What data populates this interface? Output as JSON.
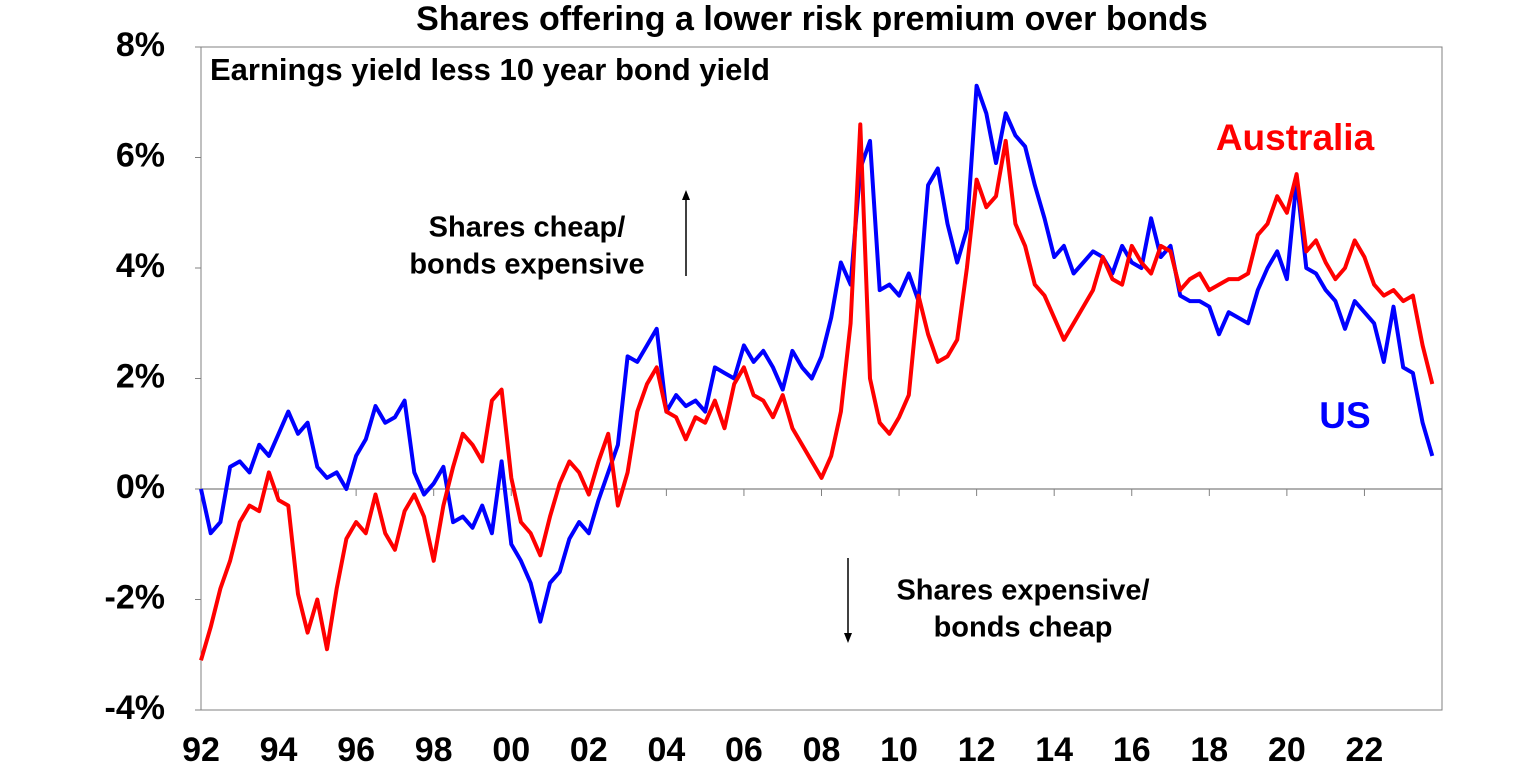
{
  "chart_data": {
    "type": "line",
    "title": "Shares offering a lower risk premium over bonds",
    "subtitle": "Earnings yield less 10 year bond yield",
    "annotations": [
      [
        "Shares cheap/",
        "bonds expensive"
      ],
      [
        "Shares expensive/",
        "bonds cheap"
      ]
    ],
    "x": [
      1992,
      1992.25,
      1992.5,
      1992.75,
      1993,
      1993.25,
      1993.5,
      1993.75,
      1994,
      1994.25,
      1994.5,
      1994.75,
      1995,
      1995.25,
      1995.5,
      1995.75,
      1996,
      1996.25,
      1996.5,
      1996.75,
      1997,
      1997.25,
      1997.5,
      1997.75,
      1998,
      1998.25,
      1998.5,
      1998.75,
      1999,
      1999.25,
      1999.5,
      1999.75,
      2000,
      2000.25,
      2000.5,
      2000.75,
      2001,
      2001.25,
      2001.5,
      2001.75,
      2002,
      2002.25,
      2002.5,
      2002.75,
      2003,
      2003.25,
      2003.5,
      2003.75,
      2004,
      2004.25,
      2004.5,
      2004.75,
      2005,
      2005.25,
      2005.5,
      2005.75,
      2006,
      2006.25,
      2006.5,
      2006.75,
      2007,
      2007.25,
      2007.5,
      2007.75,
      2008,
      2008.25,
      2008.5,
      2008.75,
      2009,
      2009.25,
      2009.5,
      2009.75,
      2010,
      2010.25,
      2010.5,
      2010.75,
      2011,
      2011.25,
      2011.5,
      2011.75,
      2012,
      2012.25,
      2012.5,
      2012.75,
      2013,
      2013.25,
      2013.5,
      2013.75,
      2014,
      2014.25,
      2014.5,
      2014.75,
      2015,
      2015.25,
      2015.5,
      2015.75,
      2016,
      2016.25,
      2016.5,
      2016.75,
      2017,
      2017.25,
      2017.5,
      2017.75,
      2018,
      2018.25,
      2018.5,
      2018.75,
      2019,
      2019.25,
      2019.5,
      2019.75,
      2020,
      2020.25,
      2020.5,
      2020.75,
      2021,
      2021.25,
      2021.5,
      2021.75,
      2022,
      2022.25,
      2022.5,
      2022.75,
      2023,
      2023.25,
      2023.5,
      2023.75
    ],
    "series": [
      {
        "name": "US",
        "color": "#0000ff",
        "values": [
          0,
          -0.8,
          -0.6,
          0.4,
          0.5,
          0.3,
          0.8,
          0.6,
          1.0,
          1.4,
          1.0,
          1.2,
          0.4,
          0.2,
          0.3,
          0.0,
          0.6,
          0.9,
          1.5,
          1.2,
          1.3,
          1.6,
          0.3,
          -0.1,
          0.1,
          0.4,
          -0.6,
          -0.5,
          -0.7,
          -0.3,
          -0.8,
          0.5,
          -1.0,
          -1.3,
          -1.7,
          -2.4,
          -1.7,
          -1.5,
          -0.9,
          -0.6,
          -0.8,
          -0.2,
          0.3,
          0.8,
          2.4,
          2.3,
          2.6,
          2.9,
          1.4,
          1.7,
          1.5,
          1.6,
          1.4,
          2.2,
          2.1,
          2.0,
          2.6,
          2.3,
          2.5,
          2.2,
          1.8,
          2.5,
          2.2,
          2.0,
          2.4,
          3.1,
          4.1,
          3.7,
          5.8,
          6.3,
          3.6,
          3.7,
          3.5,
          3.9,
          3.4,
          5.5,
          5.8,
          4.8,
          4.1,
          4.7,
          7.3,
          6.8,
          5.9,
          6.8,
          6.4,
          6.2,
          5.5,
          4.9,
          4.2,
          4.4,
          3.9,
          4.1,
          4.3,
          4.2,
          3.9,
          4.4,
          4.1,
          4.0,
          4.9,
          4.2,
          4.4,
          3.5,
          3.4,
          3.4,
          3.3,
          2.8,
          3.2,
          3.1,
          3.0,
          3.6,
          4.0,
          4.3,
          3.8,
          5.6,
          4.0,
          3.9,
          3.6,
          3.4,
          2.9,
          3.4,
          3.2,
          3.0,
          2.3,
          3.3,
          2.2,
          2.1,
          1.2,
          0.6
        ]
      },
      {
        "name": "Australia",
        "color": "#ff0000",
        "values": [
          -3.1,
          -2.5,
          -1.8,
          -1.3,
          -0.6,
          -0.3,
          -0.4,
          0.3,
          -0.2,
          -0.3,
          -1.9,
          -2.6,
          -2.0,
          -2.9,
          -1.8,
          -0.9,
          -0.6,
          -0.8,
          -0.1,
          -0.8,
          -1.1,
          -0.4,
          -0.1,
          -0.5,
          -1.3,
          -0.3,
          0.4,
          1.0,
          0.8,
          0.5,
          1.6,
          1.8,
          0.2,
          -0.6,
          -0.8,
          -1.2,
          -0.5,
          0.1,
          0.5,
          0.3,
          -0.1,
          0.5,
          1.0,
          -0.3,
          0.3,
          1.4,
          1.9,
          2.2,
          1.4,
          1.3,
          0.9,
          1.3,
          1.2,
          1.6,
          1.1,
          1.9,
          2.2,
          1.7,
          1.6,
          1.3,
          1.7,
          1.1,
          0.8,
          0.5,
          0.2,
          0.6,
          1.4,
          3.0,
          6.6,
          2.0,
          1.2,
          1.0,
          1.3,
          1.7,
          3.5,
          2.8,
          2.3,
          2.4,
          2.7,
          4.0,
          5.6,
          5.1,
          5.3,
          6.3,
          4.8,
          4.4,
          3.7,
          3.5,
          3.1,
          2.7,
          3.0,
          3.3,
          3.6,
          4.2,
          3.8,
          3.7,
          4.4,
          4.1,
          3.9,
          4.4,
          4.3,
          3.6,
          3.8,
          3.9,
          3.6,
          3.7,
          3.8,
          3.8,
          3.9,
          4.6,
          4.8,
          5.3,
          5.0,
          5.7,
          4.3,
          4.5,
          4.1,
          3.8,
          4.0,
          4.5,
          4.2,
          3.7,
          3.5,
          3.6,
          3.4,
          3.5,
          2.6,
          1.9
        ]
      }
    ],
    "xlim": [
      1992,
      2024
    ],
    "xticks": [
      {
        "value": 1992,
        "label": "92"
      },
      {
        "value": 1994,
        "label": "94"
      },
      {
        "value": 1996,
        "label": "96"
      },
      {
        "value": 1998,
        "label": "98"
      },
      {
        "value": 2000,
        "label": "00"
      },
      {
        "value": 2002,
        "label": "02"
      },
      {
        "value": 2004,
        "label": "04"
      },
      {
        "value": 2006,
        "label": "06"
      },
      {
        "value": 2008,
        "label": "08"
      },
      {
        "value": 2010,
        "label": "10"
      },
      {
        "value": 2012,
        "label": "12"
      },
      {
        "value": 2014,
        "label": "14"
      },
      {
        "value": 2016,
        "label": "16"
      },
      {
        "value": 2018,
        "label": "18"
      },
      {
        "value": 2020,
        "label": "20"
      },
      {
        "value": 2022,
        "label": "22"
      }
    ],
    "ylim": [
      -4,
      8
    ],
    "yticks": [
      {
        "value": -4,
        "label": "-4%"
      },
      {
        "value": -2,
        "label": "-2%"
      },
      {
        "value": 0,
        "label": "0%"
      },
      {
        "value": 2,
        "label": "2%"
      },
      {
        "value": 4,
        "label": "4%"
      },
      {
        "value": 6,
        "label": "6%"
      },
      {
        "value": 8,
        "label": "8%"
      }
    ],
    "grid": false
  }
}
